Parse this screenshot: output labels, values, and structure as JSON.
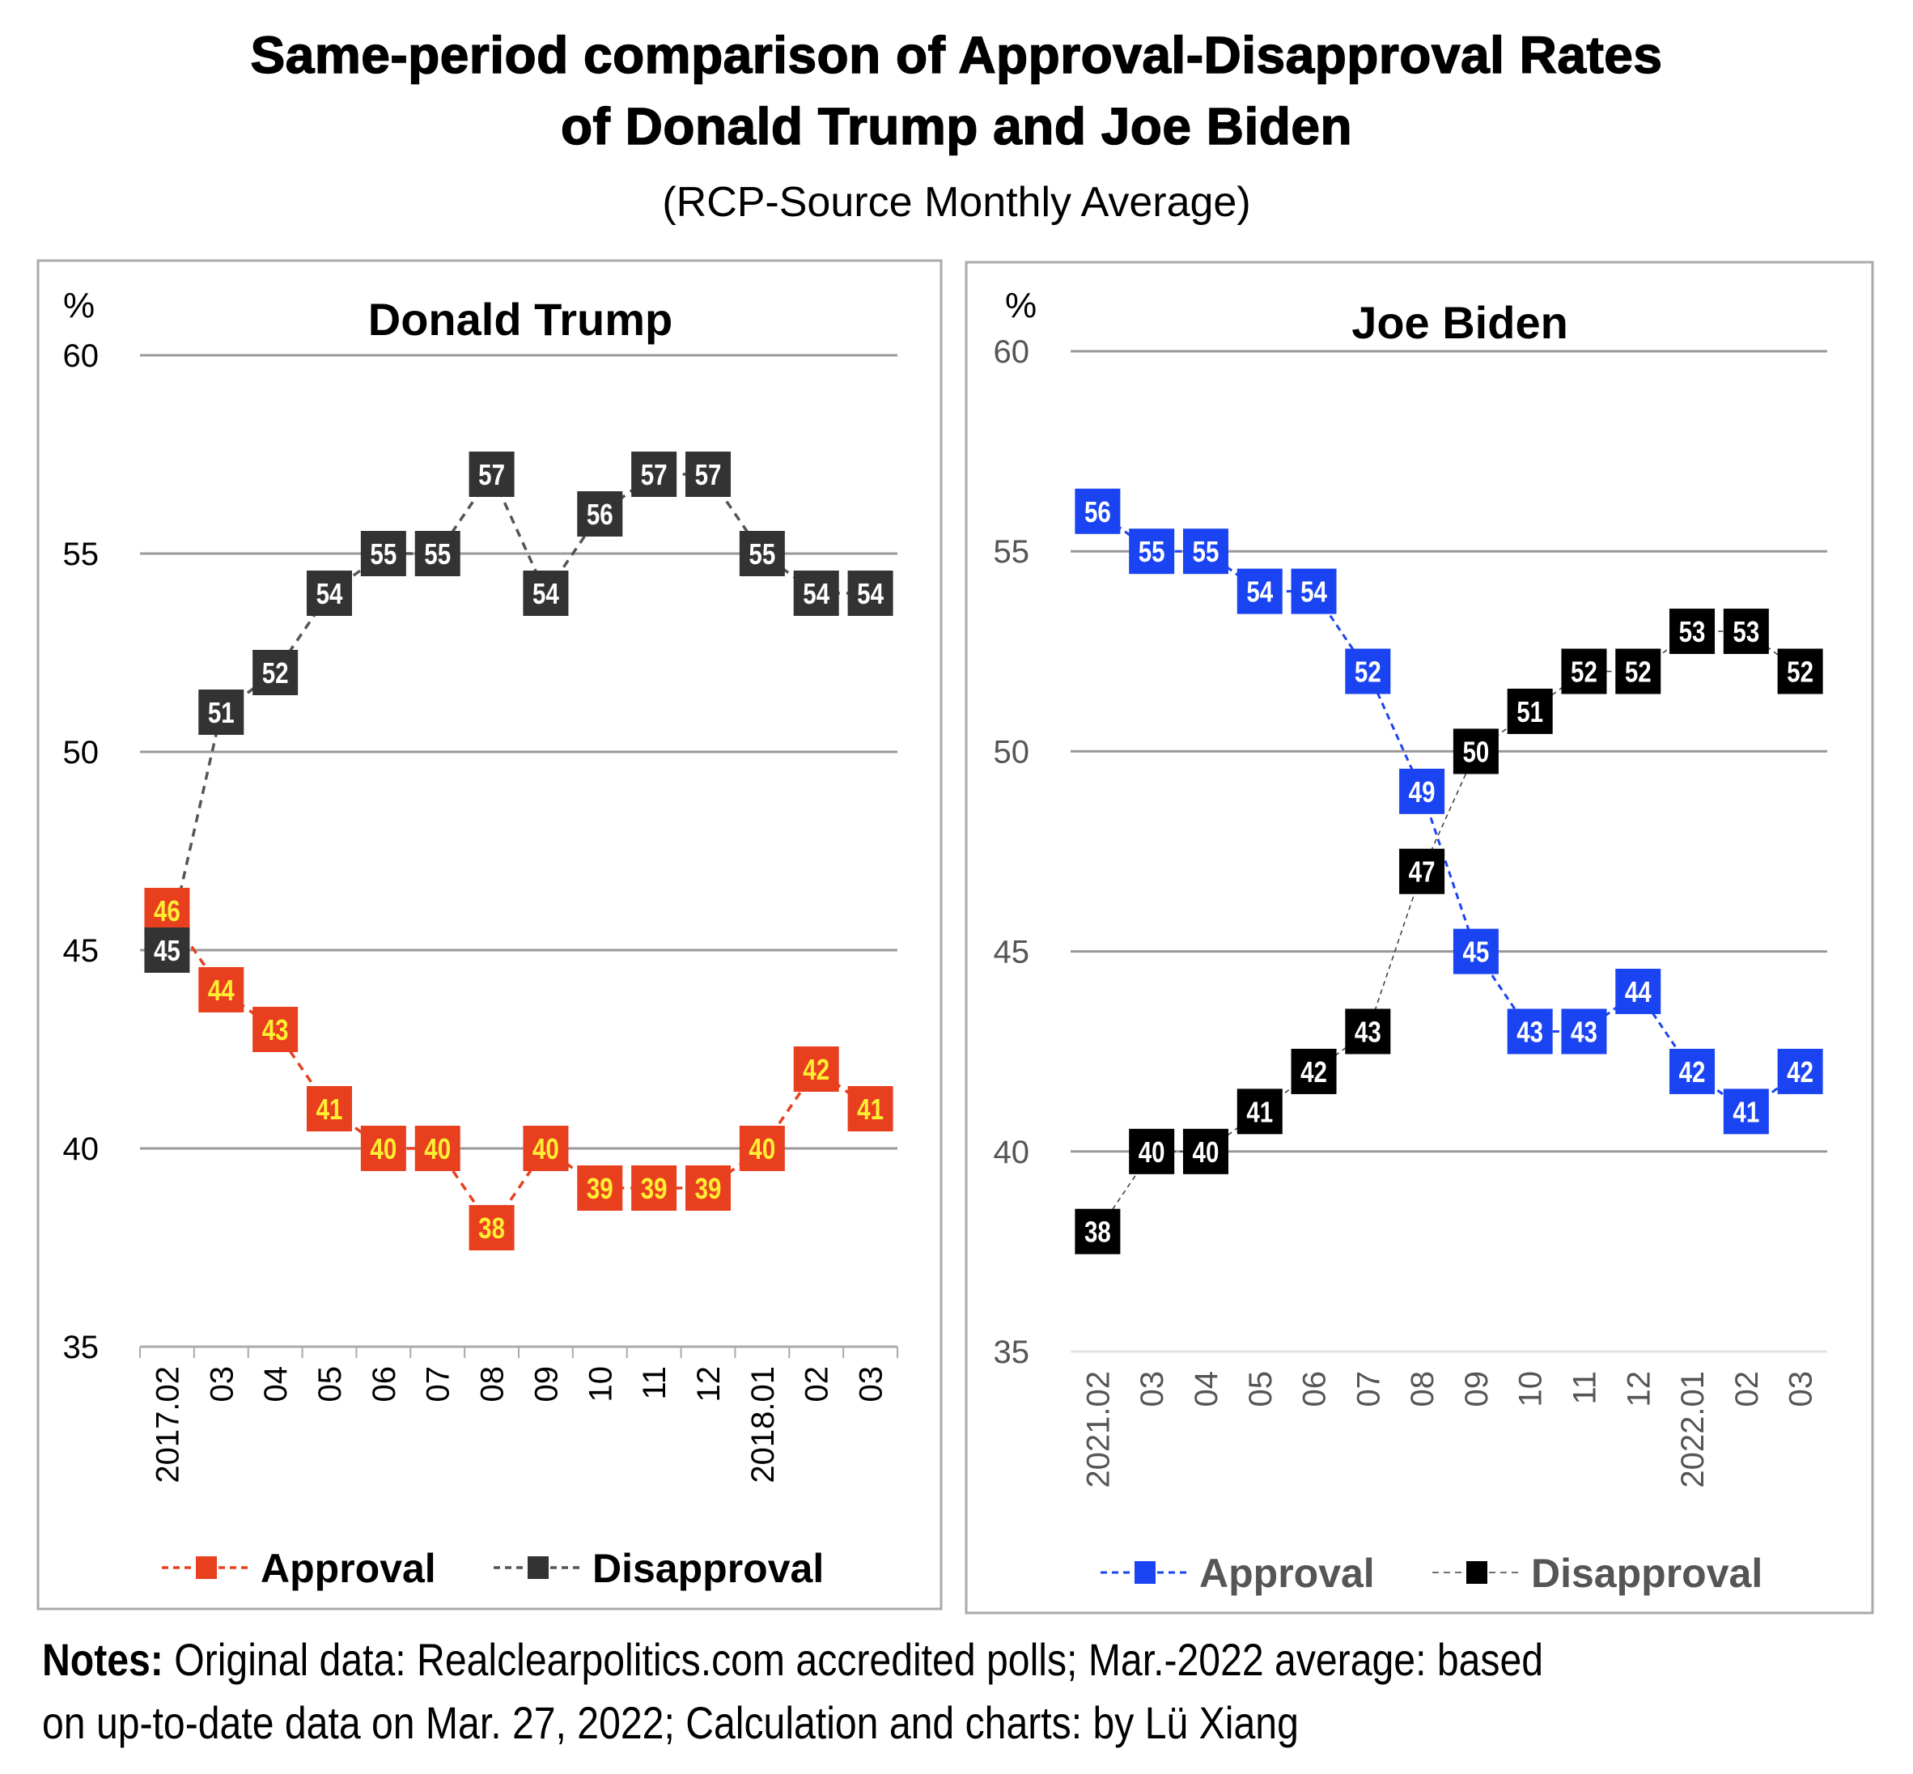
{
  "title": {
    "line1": "Same-period comparison of Approval-Disapproval Rates",
    "line2": "of Donald Trump and Joe Biden",
    "subtitle": "(RCP-Source Monthly Average)"
  },
  "notes": {
    "label": "Notes:",
    "line1": " Original data: Realclearpolitics.com accredited polls; Mar.-2022 average: based",
    "line2": "on up-to-date data on Mar. 27, 2022; Calculation and charts: by Lü Xiang"
  },
  "colors": {
    "trump_approval": "#e8401f",
    "trump_approval_label": "#ffee33",
    "trump_disapproval": "#333333",
    "biden_approval": "#1a44f2",
    "biden_disapproval": "#000000",
    "gridline": "#999999",
    "panel_border": "#aaaaaa"
  },
  "chart_data": [
    {
      "type": "line",
      "title": "Donald Trump",
      "ylabel": "%",
      "xlabel": "",
      "ylim": [
        35,
        60
      ],
      "yticks": [
        "35",
        "40",
        "45",
        "50",
        "55",
        "60"
      ],
      "grid": true,
      "legend": "bottom",
      "categories": [
        "2017.02",
        "03",
        "04",
        "05",
        "06",
        "07",
        "08",
        "09",
        "10",
        "11",
        "12",
        "2018.01",
        "02",
        "03"
      ],
      "series": [
        {
          "name": "Approval",
          "values": [
            46,
            44,
            43,
            41,
            40,
            40,
            38,
            40,
            39,
            39,
            39,
            40,
            42,
            41
          ]
        },
        {
          "name": "Disapproval",
          "values": [
            45,
            51,
            52,
            54,
            55,
            55,
            57,
            54,
            56,
            57,
            57,
            55,
            54,
            54
          ]
        }
      ]
    },
    {
      "type": "line",
      "title": "Joe Biden",
      "ylabel": "%",
      "xlabel": "",
      "ylim": [
        35,
        60
      ],
      "yticks": [
        "35",
        "40",
        "45",
        "50",
        "55",
        "60"
      ],
      "grid": true,
      "legend": "bottom",
      "categories": [
        "2021.02",
        "03",
        "04",
        "05",
        "06",
        "07",
        "08",
        "09",
        "10",
        "11",
        "12",
        "2022.01",
        "02",
        "03"
      ],
      "series": [
        {
          "name": "Approval",
          "values": [
            56,
            55,
            55,
            54,
            54,
            52,
            49,
            45,
            43,
            43,
            44,
            42,
            41,
            42
          ]
        },
        {
          "name": "Disapproval",
          "values": [
            38,
            40,
            40,
            41,
            42,
            43,
            47,
            50,
            51,
            52,
            52,
            53,
            53,
            52
          ]
        }
      ]
    }
  ]
}
